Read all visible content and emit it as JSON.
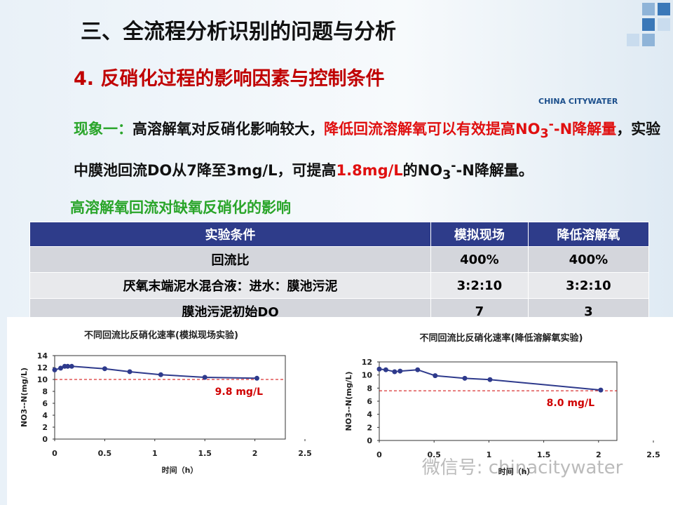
{
  "header": {
    "title": "三、全流程分析识别的问题与分析",
    "subtitle": "4. 反硝化过程的影响因素与控制条件",
    "logo": "CHINA CITYWATER"
  },
  "paragraph": [
    "现象一：",
    "高溶解氧对反硝化影响较大，",
    "降低回流溶解氧可以有效提高NO",
    "3",
    "-",
    "-N降解量",
    "，实验中膜池回流DO从7降至3mg/L，可提高",
    "1.8mg/L",
    "的NO",
    "3",
    "-",
    "-N降解量。"
  ],
  "section": "高溶解氧回流对缺氧反硝化的影响",
  "table": {
    "header": [
      "实验条件",
      "模拟现场",
      "降低溶解氧"
    ],
    "rows": [
      [
        "回流比",
        "400%",
        "400%"
      ],
      [
        "厌氧末端泥水混合液：进水：膜池污泥",
        "3:2:10",
        "3:2:10"
      ],
      [
        "膜池污泥初始DO",
        "7",
        "3"
      ]
    ]
  },
  "chart_data": [
    {
      "type": "line",
      "title": "不同回流比反硝化速率(模拟现场实验)",
      "x_label": "时间（h）",
      "y_label": "NO3--N(mg/L)",
      "color": "#2e3a8c",
      "x": [
        0,
        0.06,
        0.1,
        0.13,
        0.17,
        0.5,
        0.75,
        1.06,
        1.5,
        2.02
      ],
      "values": [
        11.6,
        11.9,
        12.2,
        12.2,
        12.2,
        11.8,
        11.3,
        10.8,
        10.35,
        10.2
      ],
      "xlim": [
        0,
        2.5
      ],
      "xticks": [
        0,
        0.5,
        1,
        1.5,
        2,
        2.5
      ],
      "ylim": [
        0,
        14
      ],
      "yticks": [
        0,
        2,
        4,
        6,
        8,
        10,
        12,
        14
      ],
      "ref_line": {
        "value": 10,
        "color": "#d00000"
      },
      "annotation": "9.8 mg/L"
    },
    {
      "type": "line",
      "title": "不同回流比反硝化速率(降低溶解氧实验)",
      "x_label": "时间（h）",
      "y_label": "NO3--N(mg/L)",
      "color": "#2e3a8c",
      "x": [
        0,
        0.06,
        0.14,
        0.19,
        0.35,
        0.51,
        0.78,
        1.01,
        2.02
      ],
      "values": [
        10.9,
        10.8,
        10.5,
        10.6,
        10.8,
        9.9,
        9.5,
        9.3,
        7.7
      ],
      "xlim": [
        0,
        2.5
      ],
      "xticks": [
        0,
        0.5,
        1,
        1.5,
        2,
        2.5
      ],
      "ylim": [
        0,
        12
      ],
      "yticks": [
        0,
        2,
        4,
        6,
        8,
        10,
        12
      ],
      "ref_line": {
        "value": 7.6,
        "color": "#d00000"
      },
      "annotation": "8.0 mg/L"
    }
  ],
  "watermark": "微信号: chinacitywater"
}
